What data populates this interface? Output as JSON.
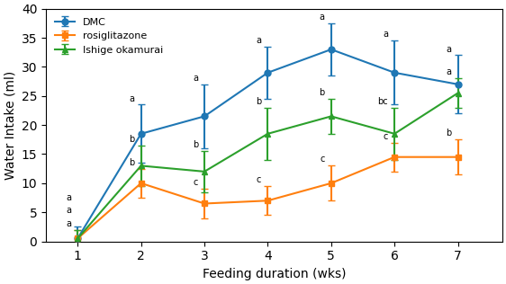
{
  "chart_data": {
    "type": "line",
    "xlabel": "Feeding duration (wks)",
    "ylabel": "Water Intake (ml)",
    "x": [
      1,
      2,
      3,
      4,
      5,
      6,
      7
    ],
    "xlim": [
      0.5,
      7.7
    ],
    "xticks": [
      1,
      2,
      3,
      4,
      5,
      6,
      7
    ],
    "ylim": [
      0,
      40
    ],
    "yticks": [
      0,
      5,
      10,
      15,
      20,
      25,
      30,
      35,
      40
    ],
    "legend": "upper left",
    "series": [
      {
        "name": "DMC",
        "marker": "circle",
        "values": [
          0.5,
          18.5,
          21.5,
          29.0,
          33.0,
          29.0,
          27.0
        ],
        "error": [
          2.0,
          5.0,
          5.5,
          4.5,
          4.5,
          5.5,
          5.0
        ],
        "annotations": [
          "a",
          "a",
          "a",
          "a",
          "a",
          "a",
          "a"
        ]
      },
      {
        "name": "rosiglitazone",
        "marker": "square",
        "values": [
          0.5,
          10.0,
          6.5,
          7.0,
          10.0,
          14.5,
          14.5
        ],
        "error": [
          1.5,
          2.5,
          2.5,
          2.5,
          3.0,
          2.5,
          3.0
        ],
        "annotations": [
          "a",
          "b",
          "c",
          "c",
          "c",
          "c",
          "b"
        ]
      },
      {
        "name": "Ishige okamurai",
        "marker": "triangle",
        "values": [
          0.5,
          13.0,
          12.0,
          18.5,
          21.5,
          18.5,
          25.5
        ],
        "error": [
          1.5,
          3.5,
          3.5,
          4.5,
          3.0,
          4.5,
          2.5
        ],
        "annotations": [
          "a",
          "b",
          "b",
          "b",
          "b",
          "bc",
          "a"
        ]
      }
    ]
  }
}
